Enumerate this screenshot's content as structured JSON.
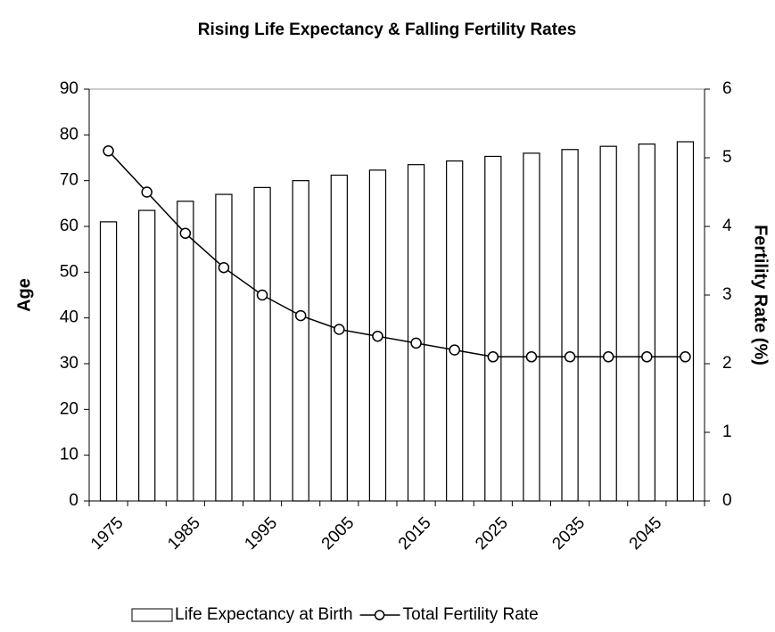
{
  "chart_data": {
    "type": "bar",
    "title": "Rising Life Expectancy & Falling Fertility Rates",
    "y_label": "Age",
    "y2_label": "Fertility Rate (%)",
    "categories": [
      "1975",
      null,
      "1985",
      null,
      "1995",
      null,
      "2005",
      null,
      "2015",
      null,
      "2025",
      null,
      "2035",
      null,
      "2045",
      null
    ],
    "series": [
      {
        "name": "Life Expectancy at Birth",
        "type": "bar",
        "color": "#ffffff",
        "values": [
          61,
          63.5,
          65.5,
          67,
          68.5,
          70,
          71.2,
          72.3,
          73.5,
          74.3,
          75.3,
          76,
          76.8,
          77.5,
          78,
          78.5
        ]
      },
      {
        "name": "Total Fertility Rate",
        "type": "line",
        "axis": "y2",
        "color": "#000000",
        "values": [
          5.1,
          4.5,
          3.9,
          3.4,
          3.0,
          2.7,
          2.5,
          2.4,
          2.3,
          2.2,
          2.1,
          2.1,
          2.1,
          2.1,
          2.1,
          2.1
        ]
      }
    ],
    "ylim": [
      0,
      90
    ],
    "yticks": [
      0,
      10,
      20,
      30,
      40,
      50,
      60,
      70,
      80,
      90
    ],
    "y2lim": [
      0,
      6
    ],
    "y2ticks": [
      0,
      1,
      2,
      3,
      4,
      5,
      6
    ],
    "grid": false,
    "legend": "bottom"
  }
}
